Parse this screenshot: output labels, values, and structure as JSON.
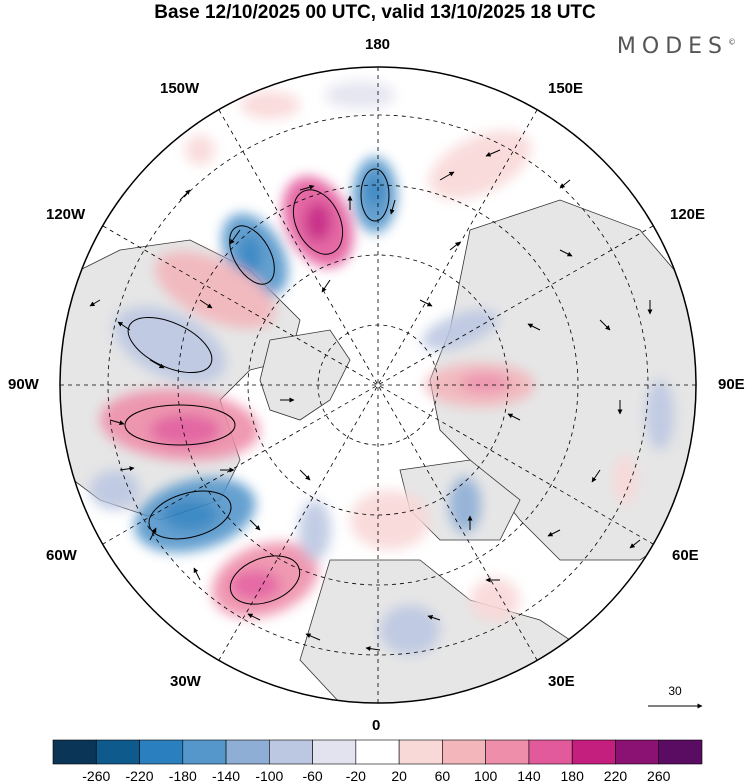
{
  "title": "Base 12/10/2025 00 UTC, valid 13/10/2025 18 UTC",
  "logo": "MODES",
  "logo_mark": "©",
  "longitude_labels": {
    "top": "180",
    "bottom": "0",
    "left": "90W",
    "right": "90E",
    "upper_left_outer": "150W",
    "upper_left_inner": "120W",
    "upper_right_outer": "150E",
    "upper_right_inner": "120E",
    "lower_left_outer": "60W",
    "lower_left_inner": "30W",
    "lower_right_outer": "60E",
    "lower_right_inner": "30E"
  },
  "reference_vector": {
    "label": "30"
  },
  "colorbar": {
    "ticks": [
      "-260",
      "-220",
      "-180",
      "-140",
      "-100",
      "-60",
      "-20",
      "20",
      "60",
      "100",
      "140",
      "180",
      "220",
      "260"
    ],
    "colors": [
      "#0b3557",
      "#0e5a8c",
      "#2a7fbf",
      "#5596cb",
      "#8eaed6",
      "#bcc7e2",
      "#e3e3f0",
      "#ffffff",
      "#f9d8d8",
      "#f3b6bb",
      "#ee8eaa",
      "#e35a9c",
      "#c41e7f",
      "#8b1273",
      "#5a0c63"
    ]
  }
}
